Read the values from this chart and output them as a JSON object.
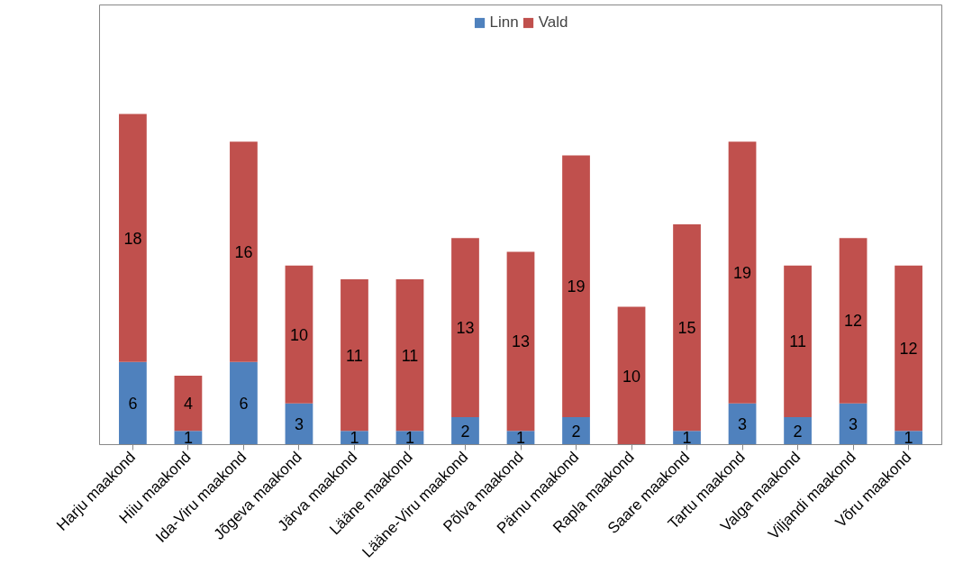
{
  "chart_data": {
    "type": "bar",
    "stacked": true,
    "data_labels": true,
    "legend": "top",
    "grid": false,
    "categories": [
      "Harju maakond",
      "Hiiu maakond",
      "Ida-Viru maakond",
      "Jõgeva maakond",
      "Järva maakond",
      "Lääne maakond",
      "Lääne-Viru maakond",
      "Põlva maakond",
      "Pärnu maakond",
      "Rapla maakond",
      "Saare maakond",
      "Tartu maakond",
      "Valga maakond",
      "Viljandi maakond",
      "Võru maakond"
    ],
    "series": [
      {
        "name": "Linn",
        "color": "#4f81bd",
        "values": [
          6,
          1,
          6,
          3,
          1,
          1,
          2,
          1,
          2,
          null,
          1,
          3,
          2,
          3,
          1
        ]
      },
      {
        "name": "Vald",
        "color": "#c0504d",
        "values": [
          18,
          4,
          16,
          10,
          11,
          11,
          13,
          13,
          19,
          10,
          15,
          19,
          11,
          12,
          12
        ]
      }
    ]
  }
}
